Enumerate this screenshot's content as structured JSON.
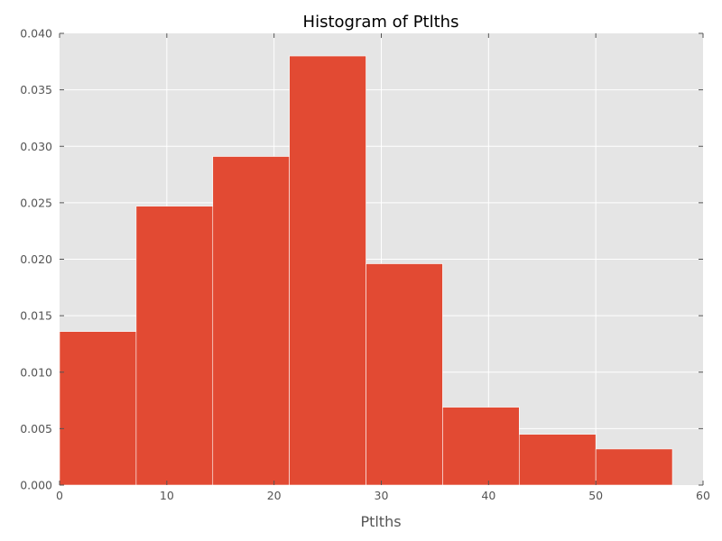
{
  "chart_data": {
    "type": "bar",
    "title": "Histogram of Ptlths",
    "xlabel": "Ptlths",
    "ylabel": "",
    "xlim": [
      0,
      60
    ],
    "ylim": [
      0,
      0.04
    ],
    "bin_edges": [
      0,
      7.143,
      14.286,
      21.429,
      28.571,
      35.714,
      42.857,
      50.0,
      57.143
    ],
    "values": [
      0.0136,
      0.0247,
      0.0291,
      0.038,
      0.0196,
      0.0069,
      0.0045,
      0.0032
    ],
    "x_ticks": [
      0,
      10,
      20,
      30,
      40,
      50,
      60
    ],
    "x_tick_labels": [
      "0",
      "10",
      "20",
      "30",
      "40",
      "50",
      "60"
    ],
    "y_ticks": [
      0,
      0.005,
      0.01,
      0.015,
      0.02,
      0.025,
      0.03,
      0.035,
      0.04
    ],
    "y_tick_labels": [
      "0.000",
      "0.005",
      "0.010",
      "0.015",
      "0.020",
      "0.025",
      "0.030",
      "0.035",
      "0.040"
    ],
    "grid": true,
    "colors": {
      "bar": "#E24A33",
      "background": "#E5E5E5",
      "grid": "#FFFFFF",
      "bar_edge": "#FFFFFF"
    }
  }
}
